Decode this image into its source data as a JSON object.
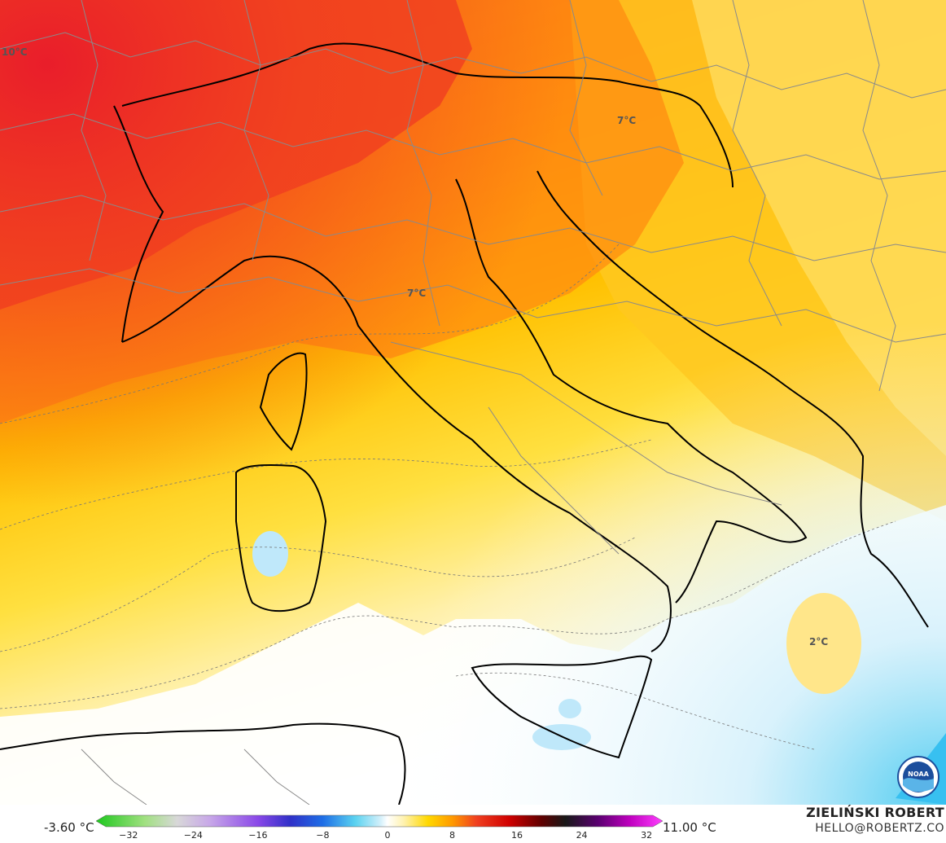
{
  "map": {
    "labels": [
      {
        "id": "label-10c",
        "text": "10°C"
      },
      {
        "id": "label-7c-slovenia",
        "text": "7°C"
      },
      {
        "id": "label-7c-italy",
        "text": "7°C"
      },
      {
        "id": "label-2c",
        "text": "2°C"
      }
    ],
    "logo": {
      "icon": "noaa-logo-icon",
      "text": "NOAA"
    }
  },
  "legend": {
    "min": "-3.60 °C",
    "max": "11.00 °C",
    "ticks": [
      "−32",
      "−24",
      "−16",
      "−8",
      "0",
      "8",
      "16",
      "24",
      "32"
    ],
    "tick_values": [
      -32,
      -24,
      -16,
      -8,
      0,
      8,
      16,
      24,
      32
    ],
    "range": [
      -36,
      34
    ],
    "colors": [
      {
        "v": -36,
        "c": "#1ec81e"
      },
      {
        "v": -30,
        "c": "#a0e080"
      },
      {
        "v": -26,
        "c": "#d8d8d8"
      },
      {
        "v": -22,
        "c": "#c8a8e8"
      },
      {
        "v": -16,
        "c": "#8a48e8"
      },
      {
        "v": -12,
        "c": "#3030c8"
      },
      {
        "v": -8,
        "c": "#1e6ee6"
      },
      {
        "v": -4,
        "c": "#5ad2f0"
      },
      {
        "v": -1,
        "c": "#cdeefa"
      },
      {
        "v": 0,
        "c": "#ffffff"
      },
      {
        "v": 2,
        "c": "#fff2b0"
      },
      {
        "v": 5,
        "c": "#ffd800"
      },
      {
        "v": 8,
        "c": "#ff9a00"
      },
      {
        "v": 11,
        "c": "#f04020"
      },
      {
        "v": 15,
        "c": "#d00000"
      },
      {
        "v": 19,
        "c": "#600000"
      },
      {
        "v": 22,
        "c": "#181818"
      },
      {
        "v": 26,
        "c": "#5a0070"
      },
      {
        "v": 30,
        "c": "#c000c0"
      },
      {
        "v": 34,
        "c": "#ff40ff"
      }
    ]
  },
  "credit": {
    "name": "ZIELIŃSKI ROBERT",
    "email": "HELLO@ROBERTZ.CO"
  }
}
